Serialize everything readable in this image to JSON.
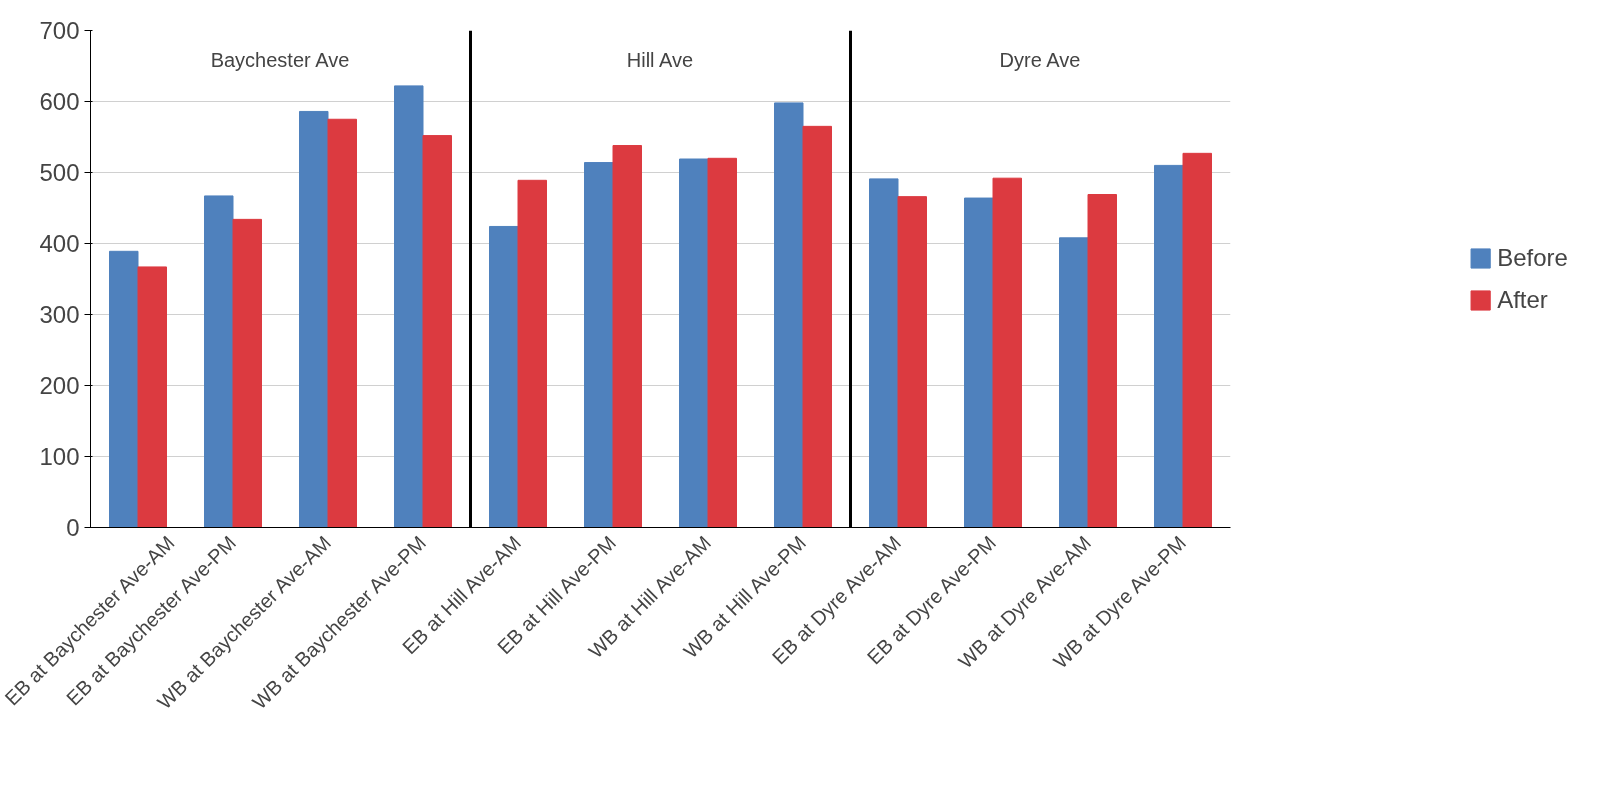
{
  "chart_data": {
    "type": "bar",
    "categories": [
      "EB at Baychester Ave-AM",
      "EB at Baychester Ave-PM",
      "WB at Baychester Ave-AM",
      "WB at Baychester Ave-PM",
      "EB at Hill Ave-AM",
      "EB at Hill Ave-PM",
      "WB at Hill Ave-AM",
      "WB at Hill Ave-PM",
      "EB at Dyre Ave-AM",
      "EB at Dyre Ave-PM",
      "WB at Dyre Ave-AM",
      "WB at Dyre Ave-PM"
    ],
    "series": [
      {
        "name": "Before",
        "color": "#4f81bd",
        "values": [
          389,
          467,
          586,
          622,
          424,
          514,
          519,
          598,
          491,
          464,
          408,
          510
        ]
      },
      {
        "name": "After",
        "color": "#dc3a40",
        "values": [
          367,
          434,
          575,
          552,
          489,
          538,
          520,
          565,
          466,
          492,
          469,
          527
        ]
      }
    ],
    "ylim": [
      0,
      700
    ],
    "yticks": [
      0,
      100,
      200,
      300,
      400,
      500,
      600,
      700
    ],
    "grid": "y",
    "legend": "right",
    "annotations": [
      "Baychester Ave",
      "Hill Ave",
      "Dyre Ave"
    ]
  }
}
